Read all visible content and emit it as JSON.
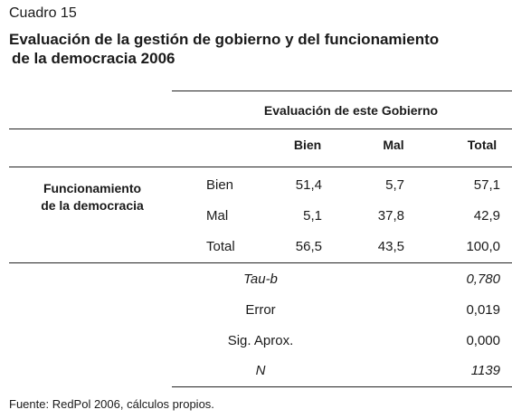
{
  "caption": "Cuadro 15",
  "title_line1": "Evaluación de la gestión de gobierno y del funcionamiento",
  "title_line2": "de la democracia 2006",
  "table": {
    "group_header": "Evaluación de este Gobierno",
    "columns": [
      "Bien",
      "Mal",
      "Total"
    ],
    "row_group_label_line1": "Funcionamiento",
    "row_group_label_line2": "de la democracia",
    "rows": [
      {
        "label": "Bien",
        "values": [
          "51,4",
          "5,7",
          "57,1"
        ]
      },
      {
        "label": "Mal",
        "values": [
          "5,1",
          "37,8",
          "42,9"
        ]
      },
      {
        "label": "Total",
        "values": [
          "56,5",
          "43,5",
          "100,0"
        ]
      }
    ],
    "stats": [
      {
        "label": "Tau-b",
        "value": "0,780"
      },
      {
        "label": "Error",
        "value": "0,019"
      },
      {
        "label": "Sig. Aprox.",
        "value": "0,000"
      },
      {
        "label": "N",
        "value": "1139"
      }
    ]
  },
  "footer": "Fuente: RedPol 2006, cálculos propios."
}
